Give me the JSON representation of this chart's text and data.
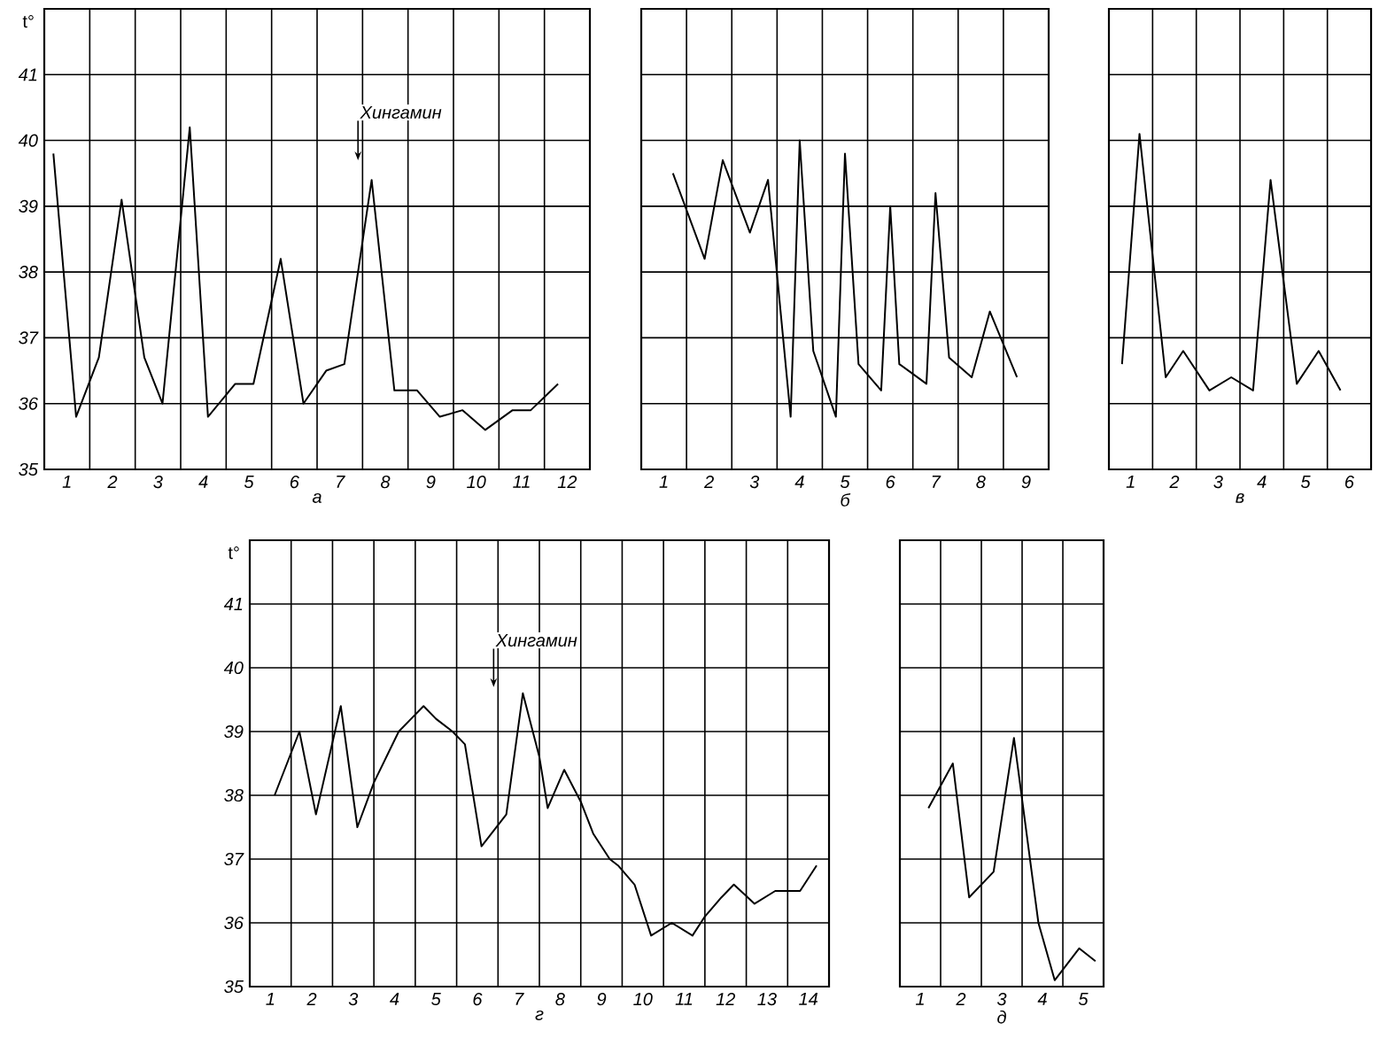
{
  "chart_data": [
    {
      "type": "line",
      "xlabel": "а",
      "ylabel": "t°",
      "x": [
        0.7,
        1.2,
        1.7,
        2.2,
        2.7,
        3.1,
        3.7,
        4.1,
        4.7,
        5.1,
        5.7,
        6.2,
        6.7,
        7.1,
        7.7,
        8.2,
        8.7,
        9.2,
        9.7,
        10.2,
        10.8,
        11.2,
        11.8
      ],
      "series": [
        {
          "color": "#000000",
          "values": [
            39.8,
            35.8,
            36.7,
            39.1,
            36.7,
            36.0,
            40.2,
            35.8,
            36.3,
            36.3,
            38.2,
            36.0,
            36.5,
            36.6,
            39.4,
            36.2,
            36.2,
            35.8,
            35.9,
            35.6,
            35.9,
            35.9,
            36.3
          ]
        }
      ],
      "xlim": [
        0.5,
        12.5
      ],
      "xticks": [
        1,
        2,
        3,
        4,
        5,
        6,
        7,
        8,
        9,
        10,
        11,
        12
      ],
      "ylim": [
        35,
        42
      ],
      "yticks": [
        35,
        36,
        37,
        38,
        39,
        40,
        41
      ],
      "grid": true,
      "annotations": [
        "Хингамин"
      ]
    },
    {
      "type": "line",
      "xlabel": "б",
      "x": [
        1.2,
        1.9,
        2.3,
        2.9,
        3.3,
        3.8,
        4.0,
        4.3,
        4.8,
        5.0,
        5.3,
        5.8,
        6.0,
        6.2,
        6.8,
        7.0,
        7.3,
        7.8,
        8.2,
        8.8
      ],
      "series": [
        {
          "color": "#000000",
          "values": [
            39.5,
            38.2,
            39.7,
            38.6,
            39.4,
            35.8,
            40.0,
            36.8,
            35.8,
            39.8,
            36.6,
            36.2,
            39.0,
            36.6,
            36.3,
            39.2,
            36.7,
            36.4,
            37.4,
            36.4
          ]
        }
      ],
      "xlim": [
        0.5,
        9.5
      ],
      "xticks": [
        1,
        2,
        3,
        4,
        5,
        6,
        7,
        8,
        9
      ],
      "ylim": [
        35,
        42
      ],
      "yticks": [
        35,
        36,
        37,
        38,
        39,
        40,
        41
      ],
      "grid": true,
      "tick_labels": "x"
    },
    {
      "type": "line",
      "xlabel": "в",
      "x": [
        0.8,
        1.2,
        1.8,
        2.2,
        2.8,
        3.3,
        3.8,
        4.2,
        4.8,
        5.3,
        5.8
      ],
      "series": [
        {
          "color": "#000000",
          "values": [
            36.6,
            40.1,
            36.4,
            36.8,
            36.2,
            36.4,
            36.2,
            39.4,
            36.3,
            36.8,
            36.2
          ]
        }
      ],
      "xlim": [
        0.5,
        6.5
      ],
      "xticks": [
        1,
        2,
        3,
        4,
        5,
        6
      ],
      "ylim": [
        35,
        42
      ],
      "yticks": [
        35,
        36,
        37,
        38,
        39,
        40,
        41
      ],
      "grid": true,
      "tick_labels": "x"
    },
    {
      "type": "line",
      "xlabel": "г",
      "ylabel": "t°",
      "x": [
        1.1,
        1.7,
        2.1,
        2.7,
        3.1,
        3.5,
        3.8,
        4.1,
        4.4,
        4.7,
        5.0,
        5.4,
        5.7,
        6.1,
        6.7,
        7.1,
        7.5,
        7.7,
        8.1,
        8.5,
        8.8,
        9.2,
        9.4,
        9.8,
        10.2,
        10.7,
        11.2,
        11.5,
        11.9,
        12.2,
        12.7,
        13.2,
        13.8,
        14.2
      ],
      "series": [
        {
          "color": "#000000",
          "values": [
            38.0,
            39.0,
            37.7,
            39.4,
            37.5,
            38.2,
            38.6,
            39.0,
            39.2,
            39.4,
            39.2,
            39.0,
            38.8,
            37.2,
            37.7,
            39.6,
            38.6,
            37.8,
            38.4,
            37.9,
            37.4,
            37.0,
            36.9,
            36.6,
            35.8,
            36.0,
            35.8,
            36.1,
            36.4,
            36.6,
            36.3,
            36.5,
            36.5,
            36.9
          ]
        }
      ],
      "xlim": [
        0.5,
        14.5
      ],
      "xticks": [
        1,
        2,
        3,
        4,
        5,
        6,
        7,
        8,
        9,
        10,
        11,
        12,
        13,
        14
      ],
      "ylim": [
        35,
        42
      ],
      "yticks": [
        35,
        36,
        37,
        38,
        39,
        40,
        41
      ],
      "grid": true,
      "annotations": [
        "Хингамин"
      ]
    },
    {
      "type": "line",
      "xlabel": "д",
      "x": [
        1.2,
        1.8,
        2.2,
        2.8,
        3.3,
        3.9,
        4.3,
        4.9,
        5.3
      ],
      "series": [
        {
          "color": "#000000",
          "values": [
            37.8,
            38.5,
            36.4,
            36.8,
            38.9,
            36.0,
            35.1,
            35.6,
            35.4
          ]
        }
      ],
      "xlim": [
        0.5,
        5.5
      ],
      "xticks": [
        1,
        2,
        3,
        4,
        5
      ],
      "ylim": [
        35,
        42
      ],
      "yticks": [
        35,
        36,
        37,
        38,
        39,
        40,
        41
      ],
      "grid": true,
      "tick_labels": "x"
    }
  ]
}
